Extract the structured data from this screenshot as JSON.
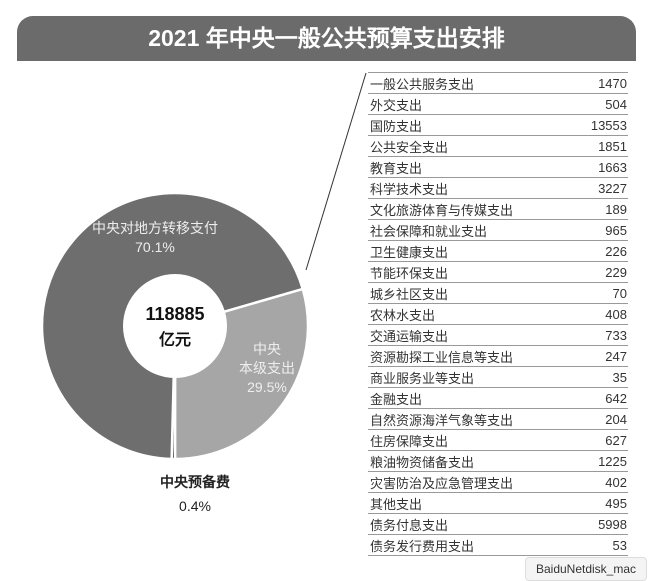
{
  "title": "2021 年中央一般公共预算支出安排",
  "chart_data": [
    {
      "type": "pie",
      "donut": true,
      "center_label": {
        "value": "118885",
        "unit": "亿元"
      },
      "slices": [
        {
          "name": "中央本级支出",
          "display_name": [
            "中央",
            "本级支出"
          ],
          "value": 29.5,
          "label": "29.5%",
          "color": "#a6a6a6"
        },
        {
          "name": "中央预备费",
          "value": 0.4,
          "label": "0.4%",
          "color": "#333333"
        },
        {
          "name": "中央对地方转移支付",
          "value": 70.1,
          "label": "70.1%",
          "color": "#6e6e6e"
        }
      ]
    },
    {
      "type": "table",
      "rows": [
        {
          "item": "一般公共服务支出",
          "value": "1470"
        },
        {
          "item": "外交支出",
          "value": "504"
        },
        {
          "item": "国防支出",
          "value": "13553"
        },
        {
          "item": "公共安全支出",
          "value": "1851"
        },
        {
          "item": "教育支出",
          "value": "1663"
        },
        {
          "item": "科学技术支出",
          "value": "3227"
        },
        {
          "item": "文化旅游体育与传媒支出",
          "value": "189"
        },
        {
          "item": "社会保障和就业支出",
          "value": "965"
        },
        {
          "item": "卫生健康支出",
          "value": "226"
        },
        {
          "item": "节能环保支出",
          "value": "229"
        },
        {
          "item": "城乡社区支出",
          "value": "70"
        },
        {
          "item": "农林水支出",
          "value": "408"
        },
        {
          "item": "交通运输支出",
          "value": "733"
        },
        {
          "item": "资源勘探工业信息等支出",
          "value": "247"
        },
        {
          "item": "商业服务业等支出",
          "value": "35"
        },
        {
          "item": "金融支出",
          "value": "642"
        },
        {
          "item": "自然资源海洋气象等支出",
          "value": "204"
        },
        {
          "item": "住房保障支出",
          "value": "627"
        },
        {
          "item": "粮油物资储备支出",
          "value": "1225"
        },
        {
          "item": "灾害防治及应急管理支出",
          "value": "402"
        },
        {
          "item": "其他支出",
          "value": "495"
        },
        {
          "item": "债务付息支出",
          "value": "5998"
        },
        {
          "item": "债务发行费用支出",
          "value": "53"
        }
      ]
    }
  ],
  "watermark": "BaiduNetdisk_mac"
}
